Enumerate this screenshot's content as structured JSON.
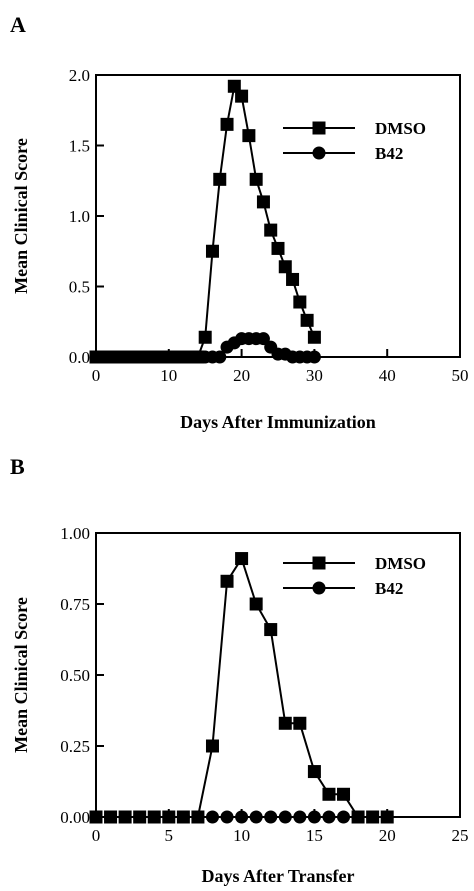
{
  "chart_data": [
    {
      "panel": "A",
      "type": "line",
      "xlabel": "Days After Immunization",
      "ylabel": "Mean Clinical Score",
      "xlim": [
        0,
        50
      ],
      "ylim": [
        0,
        2.0
      ],
      "xticks": [
        0,
        10,
        20,
        30,
        40,
        50
      ],
      "yticks": [
        0.0,
        0.5,
        1.0,
        1.5,
        2.0
      ],
      "xtick_labels": [
        "0",
        "10",
        "20",
        "30",
        "40",
        "50"
      ],
      "ytick_labels": [
        "0.0",
        "0.5",
        "1.0",
        "1.5",
        "2.0"
      ],
      "grid": false,
      "legend": "top-right",
      "series": [
        {
          "name": "DMSO",
          "marker": "square",
          "x": [
            0,
            1,
            2,
            3,
            4,
            5,
            6,
            7,
            8,
            9,
            10,
            11,
            12,
            13,
            14,
            15,
            16,
            17,
            18,
            19,
            20,
            21,
            22,
            23,
            24,
            25,
            26,
            27,
            28,
            29,
            30
          ],
          "y": [
            0,
            0,
            0,
            0,
            0,
            0,
            0,
            0,
            0,
            0,
            0,
            0,
            0,
            0,
            0,
            0.14,
            0.75,
            1.26,
            1.65,
            1.92,
            1.85,
            1.57,
            1.26,
            1.1,
            0.9,
            0.77,
            0.64,
            0.55,
            0.39,
            0.26,
            0.14
          ]
        },
        {
          "name": "B42",
          "marker": "circle",
          "x": [
            0,
            1,
            2,
            3,
            4,
            5,
            6,
            7,
            8,
            9,
            10,
            11,
            12,
            13,
            14,
            15,
            16,
            17,
            18,
            19,
            20,
            21,
            22,
            23,
            24,
            25,
            26,
            27,
            28,
            29,
            30
          ],
          "y": [
            0,
            0,
            0,
            0,
            0,
            0,
            0,
            0,
            0,
            0,
            0,
            0,
            0,
            0,
            0,
            0,
            0,
            0,
            0.07,
            0.1,
            0.13,
            0.13,
            0.13,
            0.13,
            0.07,
            0.02,
            0.02,
            0,
            0,
            0,
            0
          ]
        }
      ]
    },
    {
      "panel": "B",
      "type": "line",
      "xlabel": "Days After Transfer",
      "ylabel": "Mean Clinical Score",
      "xlim": [
        0,
        25
      ],
      "ylim": [
        0,
        1.0
      ],
      "xticks": [
        0,
        5,
        10,
        15,
        20,
        25
      ],
      "yticks": [
        0,
        0.25,
        0.5,
        0.75,
        1.0
      ],
      "xtick_labels": [
        "0",
        "5",
        "10",
        "15",
        "20",
        "25"
      ],
      "ytick_labels": [
        "0.00",
        "0.25",
        "0.50",
        "0.75",
        "1.00"
      ],
      "grid": false,
      "legend": "top-right",
      "series": [
        {
          "name": "DMSO",
          "marker": "square",
          "x": [
            0,
            1,
            2,
            3,
            4,
            5,
            6,
            7,
            8,
            9,
            10,
            11,
            12,
            13,
            14,
            15,
            16,
            17,
            18,
            19,
            20
          ],
          "y": [
            0,
            0,
            0,
            0,
            0,
            0,
            0,
            0,
            0.25,
            0.83,
            0.91,
            0.75,
            0.66,
            0.33,
            0.33,
            0.16,
            0.08,
            0.08,
            0,
            0,
            0
          ]
        },
        {
          "name": "B42",
          "marker": "circle",
          "x": [
            0,
            1,
            2,
            3,
            4,
            5,
            6,
            7,
            8,
            9,
            10,
            11,
            12,
            13,
            14,
            15,
            16,
            17,
            18,
            19,
            20
          ],
          "y": [
            0,
            0,
            0,
            0,
            0,
            0,
            0,
            0,
            0,
            0,
            0,
            0,
            0,
            0,
            0,
            0,
            0,
            0,
            0,
            0,
            0
          ]
        }
      ]
    }
  ]
}
